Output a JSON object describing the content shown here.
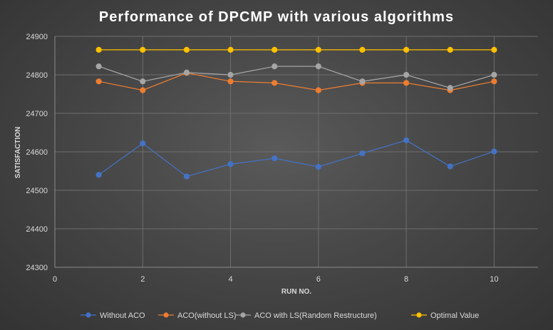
{
  "chart_data": {
    "type": "line",
    "title": "Performance  of  DPCMP  with  various  algorithms",
    "xlabel": "RUN NO.",
    "ylabel": "SATISFACTION",
    "xlim": [
      0,
      11
    ],
    "ylim": [
      24300,
      24900
    ],
    "xticks": [
      0,
      2,
      4,
      6,
      8,
      10
    ],
    "yticks": [
      24300,
      24400,
      24500,
      24600,
      24700,
      24800,
      24900
    ],
    "x": [
      1,
      2,
      3,
      4,
      5,
      6,
      7,
      8,
      9,
      10
    ],
    "grid": true,
    "legend_position": "bottom",
    "series": [
      {
        "name": "Without ACO",
        "color": "#4472c4",
        "values": [
          24540,
          24622,
          24536,
          24568,
          24583,
          24561,
          24596,
          24630,
          24562,
          24601
        ]
      },
      {
        "name": "ACO(without LS)",
        "color": "#ed7d31",
        "values": [
          24783,
          24760,
          24805,
          24783,
          24779,
          24760,
          24779,
          24779,
          24760,
          24783
        ]
      },
      {
        "name": "ACO with LS(Random Restructure)",
        "color": "#a5a5a5",
        "values": [
          24822,
          24783,
          24806,
          24800,
          24822,
          24822,
          24783,
          24800,
          24766,
          24800
        ]
      },
      {
        "name": "Optimal Value",
        "color": "#ffc000",
        "values": [
          24865,
          24865,
          24865,
          24865,
          24865,
          24865,
          24865,
          24865,
          24865,
          24865
        ]
      }
    ]
  }
}
